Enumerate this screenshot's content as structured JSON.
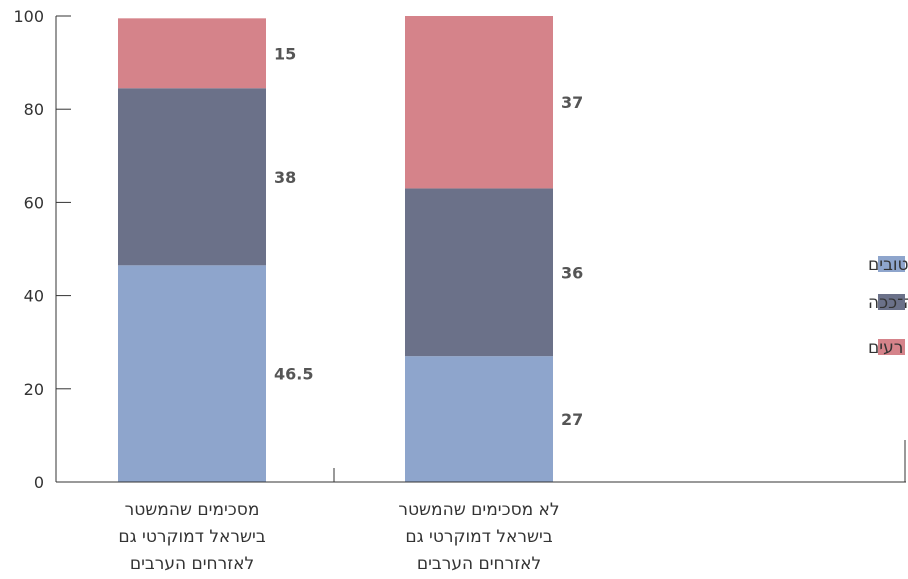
{
  "chart_data": {
    "type": "bar",
    "stacked": true,
    "categories": [
      [
        "מסכימים שהמשטר",
        "בישראל דמוקרטי גם",
        "לאזרחים הערבים"
      ],
      [
        "לא מסכימים שהמשטר",
        "בישראל דמוקרטי גם",
        "לאזרחים הערבים"
      ]
    ],
    "series": [
      {
        "name": "יחסים טובים",
        "color": "#8ea5cc",
        "values": [
          46.5,
          27
        ]
      },
      {
        "name": "ככה־ככה",
        "color": "#6b7189",
        "values": [
          38,
          36
        ]
      },
      {
        "name": "יחסים רעים",
        "color": "#d5838a",
        "values": [
          15,
          37
        ]
      }
    ],
    "ylim": [
      0,
      100
    ],
    "yticks": [
      0,
      20,
      40,
      60,
      80,
      100
    ],
    "legend": "right",
    "grid": false,
    "title": "",
    "xlabel": "",
    "ylabel": ""
  }
}
